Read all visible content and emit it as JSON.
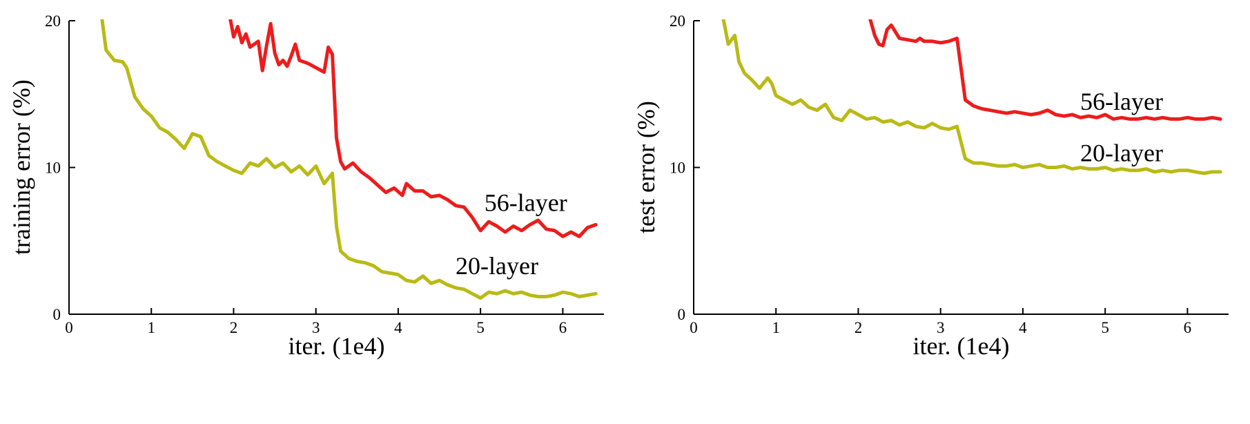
{
  "colors": {
    "axis": "#000000",
    "text": "#000000",
    "red_56_layer": "#ed1c1c",
    "olive_20_layer": "#b9ba16",
    "background": "#ffffff"
  },
  "chart_data": [
    {
      "type": "line",
      "title": "",
      "xlabel": "iter. (1e4)",
      "ylabel": "training error (%)",
      "xlim": [
        0,
        6.5
      ],
      "ylim": [
        0,
        20
      ],
      "xticks": [
        0,
        1,
        2,
        3,
        4,
        5,
        6
      ],
      "yticks": [
        0,
        10,
        20
      ],
      "grid": false,
      "legend_position": "inline-annotations",
      "annotations": [
        {
          "text": "56-layer",
          "x": 5.55,
          "y": 7.6
        },
        {
          "text": "20-layer",
          "x": 5.2,
          "y": 3.3
        }
      ],
      "series": [
        {
          "name": "56-layer",
          "color": "#ed1c1c",
          "points": [
            [
              1.93,
              21.0
            ],
            [
              2.0,
              18.9
            ],
            [
              2.05,
              19.6
            ],
            [
              2.1,
              18.5
            ],
            [
              2.15,
              19.1
            ],
            [
              2.2,
              18.2
            ],
            [
              2.3,
              18.6
            ],
            [
              2.35,
              16.6
            ],
            [
              2.4,
              18.3
            ],
            [
              2.45,
              19.8
            ],
            [
              2.5,
              17.8
            ],
            [
              2.55,
              17.0
            ],
            [
              2.6,
              17.3
            ],
            [
              2.65,
              16.9
            ],
            [
              2.7,
              17.6
            ],
            [
              2.75,
              18.4
            ],
            [
              2.8,
              17.3
            ],
            [
              2.9,
              17.1
            ],
            [
              3.0,
              16.8
            ],
            [
              3.1,
              16.5
            ],
            [
              3.15,
              18.2
            ],
            [
              3.2,
              17.7
            ],
            [
              3.25,
              12.0
            ],
            [
              3.3,
              10.4
            ],
            [
              3.35,
              9.9
            ],
            [
              3.45,
              10.3
            ],
            [
              3.55,
              9.7
            ],
            [
              3.65,
              9.3
            ],
            [
              3.75,
              8.8
            ],
            [
              3.85,
              8.3
            ],
            [
              3.95,
              8.6
            ],
            [
              4.05,
              8.1
            ],
            [
              4.1,
              8.9
            ],
            [
              4.2,
              8.4
            ],
            [
              4.3,
              8.4
            ],
            [
              4.4,
              8.0
            ],
            [
              4.5,
              8.1
            ],
            [
              4.6,
              7.8
            ],
            [
              4.7,
              7.4
            ],
            [
              4.8,
              7.3
            ],
            [
              4.9,
              6.6
            ],
            [
              5.0,
              5.7
            ],
            [
              5.1,
              6.3
            ],
            [
              5.2,
              6.0
            ],
            [
              5.3,
              5.6
            ],
            [
              5.4,
              6.0
            ],
            [
              5.5,
              5.7
            ],
            [
              5.6,
              6.1
            ],
            [
              5.7,
              6.4
            ],
            [
              5.8,
              5.8
            ],
            [
              5.9,
              5.7
            ],
            [
              6.0,
              5.3
            ],
            [
              6.1,
              5.6
            ],
            [
              6.2,
              5.3
            ],
            [
              6.3,
              5.9
            ],
            [
              6.4,
              6.1
            ]
          ]
        },
        {
          "name": "20-layer",
          "color": "#b9ba16",
          "points": [
            [
              0.38,
              21.0
            ],
            [
              0.45,
              18.0
            ],
            [
              0.55,
              17.3
            ],
            [
              0.65,
              17.2
            ],
            [
              0.7,
              16.8
            ],
            [
              0.8,
              14.8
            ],
            [
              0.9,
              14.0
            ],
            [
              1.0,
              13.5
            ],
            [
              1.1,
              12.7
            ],
            [
              1.2,
              12.4
            ],
            [
              1.3,
              11.9
            ],
            [
              1.4,
              11.3
            ],
            [
              1.5,
              12.3
            ],
            [
              1.6,
              12.1
            ],
            [
              1.7,
              10.8
            ],
            [
              1.8,
              10.4
            ],
            [
              1.9,
              10.1
            ],
            [
              2.0,
              9.8
            ],
            [
              2.1,
              9.6
            ],
            [
              2.2,
              10.3
            ],
            [
              2.3,
              10.1
            ],
            [
              2.4,
              10.6
            ],
            [
              2.5,
              10.0
            ],
            [
              2.6,
              10.3
            ],
            [
              2.7,
              9.7
            ],
            [
              2.8,
              10.1
            ],
            [
              2.9,
              9.5
            ],
            [
              3.0,
              10.1
            ],
            [
              3.1,
              8.9
            ],
            [
              3.2,
              9.6
            ],
            [
              3.25,
              6.0
            ],
            [
              3.3,
              4.3
            ],
            [
              3.4,
              3.8
            ],
            [
              3.5,
              3.6
            ],
            [
              3.6,
              3.5
            ],
            [
              3.7,
              3.3
            ],
            [
              3.8,
              2.9
            ],
            [
              3.9,
              2.8
            ],
            [
              4.0,
              2.7
            ],
            [
              4.1,
              2.3
            ],
            [
              4.2,
              2.2
            ],
            [
              4.3,
              2.6
            ],
            [
              4.4,
              2.1
            ],
            [
              4.5,
              2.3
            ],
            [
              4.6,
              2.0
            ],
            [
              4.7,
              1.8
            ],
            [
              4.8,
              1.7
            ],
            [
              4.9,
              1.4
            ],
            [
              5.0,
              1.1
            ],
            [
              5.1,
              1.5
            ],
            [
              5.2,
              1.4
            ],
            [
              5.3,
              1.6
            ],
            [
              5.4,
              1.4
            ],
            [
              5.5,
              1.5
            ],
            [
              5.6,
              1.3
            ],
            [
              5.7,
              1.2
            ],
            [
              5.8,
              1.2
            ],
            [
              5.9,
              1.3
            ],
            [
              6.0,
              1.5
            ],
            [
              6.1,
              1.4
            ],
            [
              6.2,
              1.2
            ],
            [
              6.3,
              1.3
            ],
            [
              6.4,
              1.4
            ]
          ]
        }
      ]
    },
    {
      "type": "line",
      "title": "",
      "xlabel": "iter. (1e4)",
      "ylabel": "test error (%)",
      "xlim": [
        0,
        6.5
      ],
      "ylim": [
        0,
        20
      ],
      "xticks": [
        0,
        1,
        2,
        3,
        4,
        5,
        6
      ],
      "yticks": [
        0,
        10,
        20
      ],
      "grid": false,
      "legend_position": "inline-annotations",
      "annotations": [
        {
          "text": "56-layer",
          "x": 5.2,
          "y": 14.5
        },
        {
          "text": "20-layer",
          "x": 5.2,
          "y": 11.0
        }
      ],
      "series": [
        {
          "name": "56-layer",
          "color": "#ed1c1c",
          "points": [
            [
              2.1,
              21.0
            ],
            [
              2.2,
              19.0
            ],
            [
              2.25,
              18.4
            ],
            [
              2.3,
              18.3
            ],
            [
              2.35,
              19.4
            ],
            [
              2.4,
              19.7
            ],
            [
              2.5,
              18.8
            ],
            [
              2.6,
              18.7
            ],
            [
              2.7,
              18.6
            ],
            [
              2.75,
              18.8
            ],
            [
              2.8,
              18.6
            ],
            [
              2.9,
              18.6
            ],
            [
              3.0,
              18.5
            ],
            [
              3.1,
              18.6
            ],
            [
              3.2,
              18.8
            ],
            [
              3.3,
              14.6
            ],
            [
              3.4,
              14.2
            ],
            [
              3.5,
              14.0
            ],
            [
              3.6,
              13.9
            ],
            [
              3.7,
              13.8
            ],
            [
              3.8,
              13.7
            ],
            [
              3.9,
              13.8
            ],
            [
              4.0,
              13.7
            ],
            [
              4.1,
              13.6
            ],
            [
              4.2,
              13.7
            ],
            [
              4.3,
              13.9
            ],
            [
              4.4,
              13.6
            ],
            [
              4.5,
              13.5
            ],
            [
              4.6,
              13.6
            ],
            [
              4.7,
              13.4
            ],
            [
              4.8,
              13.5
            ],
            [
              4.9,
              13.4
            ],
            [
              5.0,
              13.6
            ],
            [
              5.1,
              13.3
            ],
            [
              5.2,
              13.4
            ],
            [
              5.3,
              13.3
            ],
            [
              5.4,
              13.3
            ],
            [
              5.5,
              13.4
            ],
            [
              5.6,
              13.3
            ],
            [
              5.7,
              13.4
            ],
            [
              5.8,
              13.3
            ],
            [
              5.9,
              13.3
            ],
            [
              6.0,
              13.4
            ],
            [
              6.1,
              13.3
            ],
            [
              6.2,
              13.3
            ],
            [
              6.3,
              13.4
            ],
            [
              6.4,
              13.3
            ]
          ]
        },
        {
          "name": "20-layer",
          "color": "#b9ba16",
          "points": [
            [
              0.33,
              21.0
            ],
            [
              0.42,
              18.4
            ],
            [
              0.5,
              19.0
            ],
            [
              0.55,
              17.2
            ],
            [
              0.62,
              16.4
            ],
            [
              0.7,
              16.0
            ],
            [
              0.8,
              15.4
            ],
            [
              0.9,
              16.1
            ],
            [
              0.95,
              15.7
            ],
            [
              1.0,
              14.9
            ],
            [
              1.1,
              14.6
            ],
            [
              1.2,
              14.3
            ],
            [
              1.3,
              14.6
            ],
            [
              1.4,
              14.1
            ],
            [
              1.5,
              13.9
            ],
            [
              1.6,
              14.3
            ],
            [
              1.7,
              13.4
            ],
            [
              1.8,
              13.2
            ],
            [
              1.9,
              13.9
            ],
            [
              2.0,
              13.6
            ],
            [
              2.1,
              13.3
            ],
            [
              2.2,
              13.4
            ],
            [
              2.3,
              13.1
            ],
            [
              2.4,
              13.2
            ],
            [
              2.5,
              12.9
            ],
            [
              2.6,
              13.1
            ],
            [
              2.7,
              12.8
            ],
            [
              2.8,
              12.7
            ],
            [
              2.9,
              13.0
            ],
            [
              3.0,
              12.7
            ],
            [
              3.1,
              12.6
            ],
            [
              3.2,
              12.8
            ],
            [
              3.3,
              10.6
            ],
            [
              3.4,
              10.3
            ],
            [
              3.5,
              10.3
            ],
            [
              3.6,
              10.2
            ],
            [
              3.7,
              10.1
            ],
            [
              3.8,
              10.1
            ],
            [
              3.9,
              10.2
            ],
            [
              4.0,
              10.0
            ],
            [
              4.1,
              10.1
            ],
            [
              4.2,
              10.2
            ],
            [
              4.3,
              10.0
            ],
            [
              4.4,
              10.0
            ],
            [
              4.5,
              10.1
            ],
            [
              4.6,
              9.9
            ],
            [
              4.7,
              10.0
            ],
            [
              4.8,
              9.9
            ],
            [
              4.9,
              9.9
            ],
            [
              5.0,
              10.0
            ],
            [
              5.1,
              9.8
            ],
            [
              5.2,
              9.9
            ],
            [
              5.3,
              9.8
            ],
            [
              5.4,
              9.8
            ],
            [
              5.5,
              9.9
            ],
            [
              5.6,
              9.7
            ],
            [
              5.7,
              9.8
            ],
            [
              5.8,
              9.7
            ],
            [
              5.9,
              9.8
            ],
            [
              6.0,
              9.8
            ],
            [
              6.1,
              9.7
            ],
            [
              6.2,
              9.6
            ],
            [
              6.3,
              9.7
            ],
            [
              6.4,
              9.7
            ]
          ]
        }
      ]
    }
  ]
}
